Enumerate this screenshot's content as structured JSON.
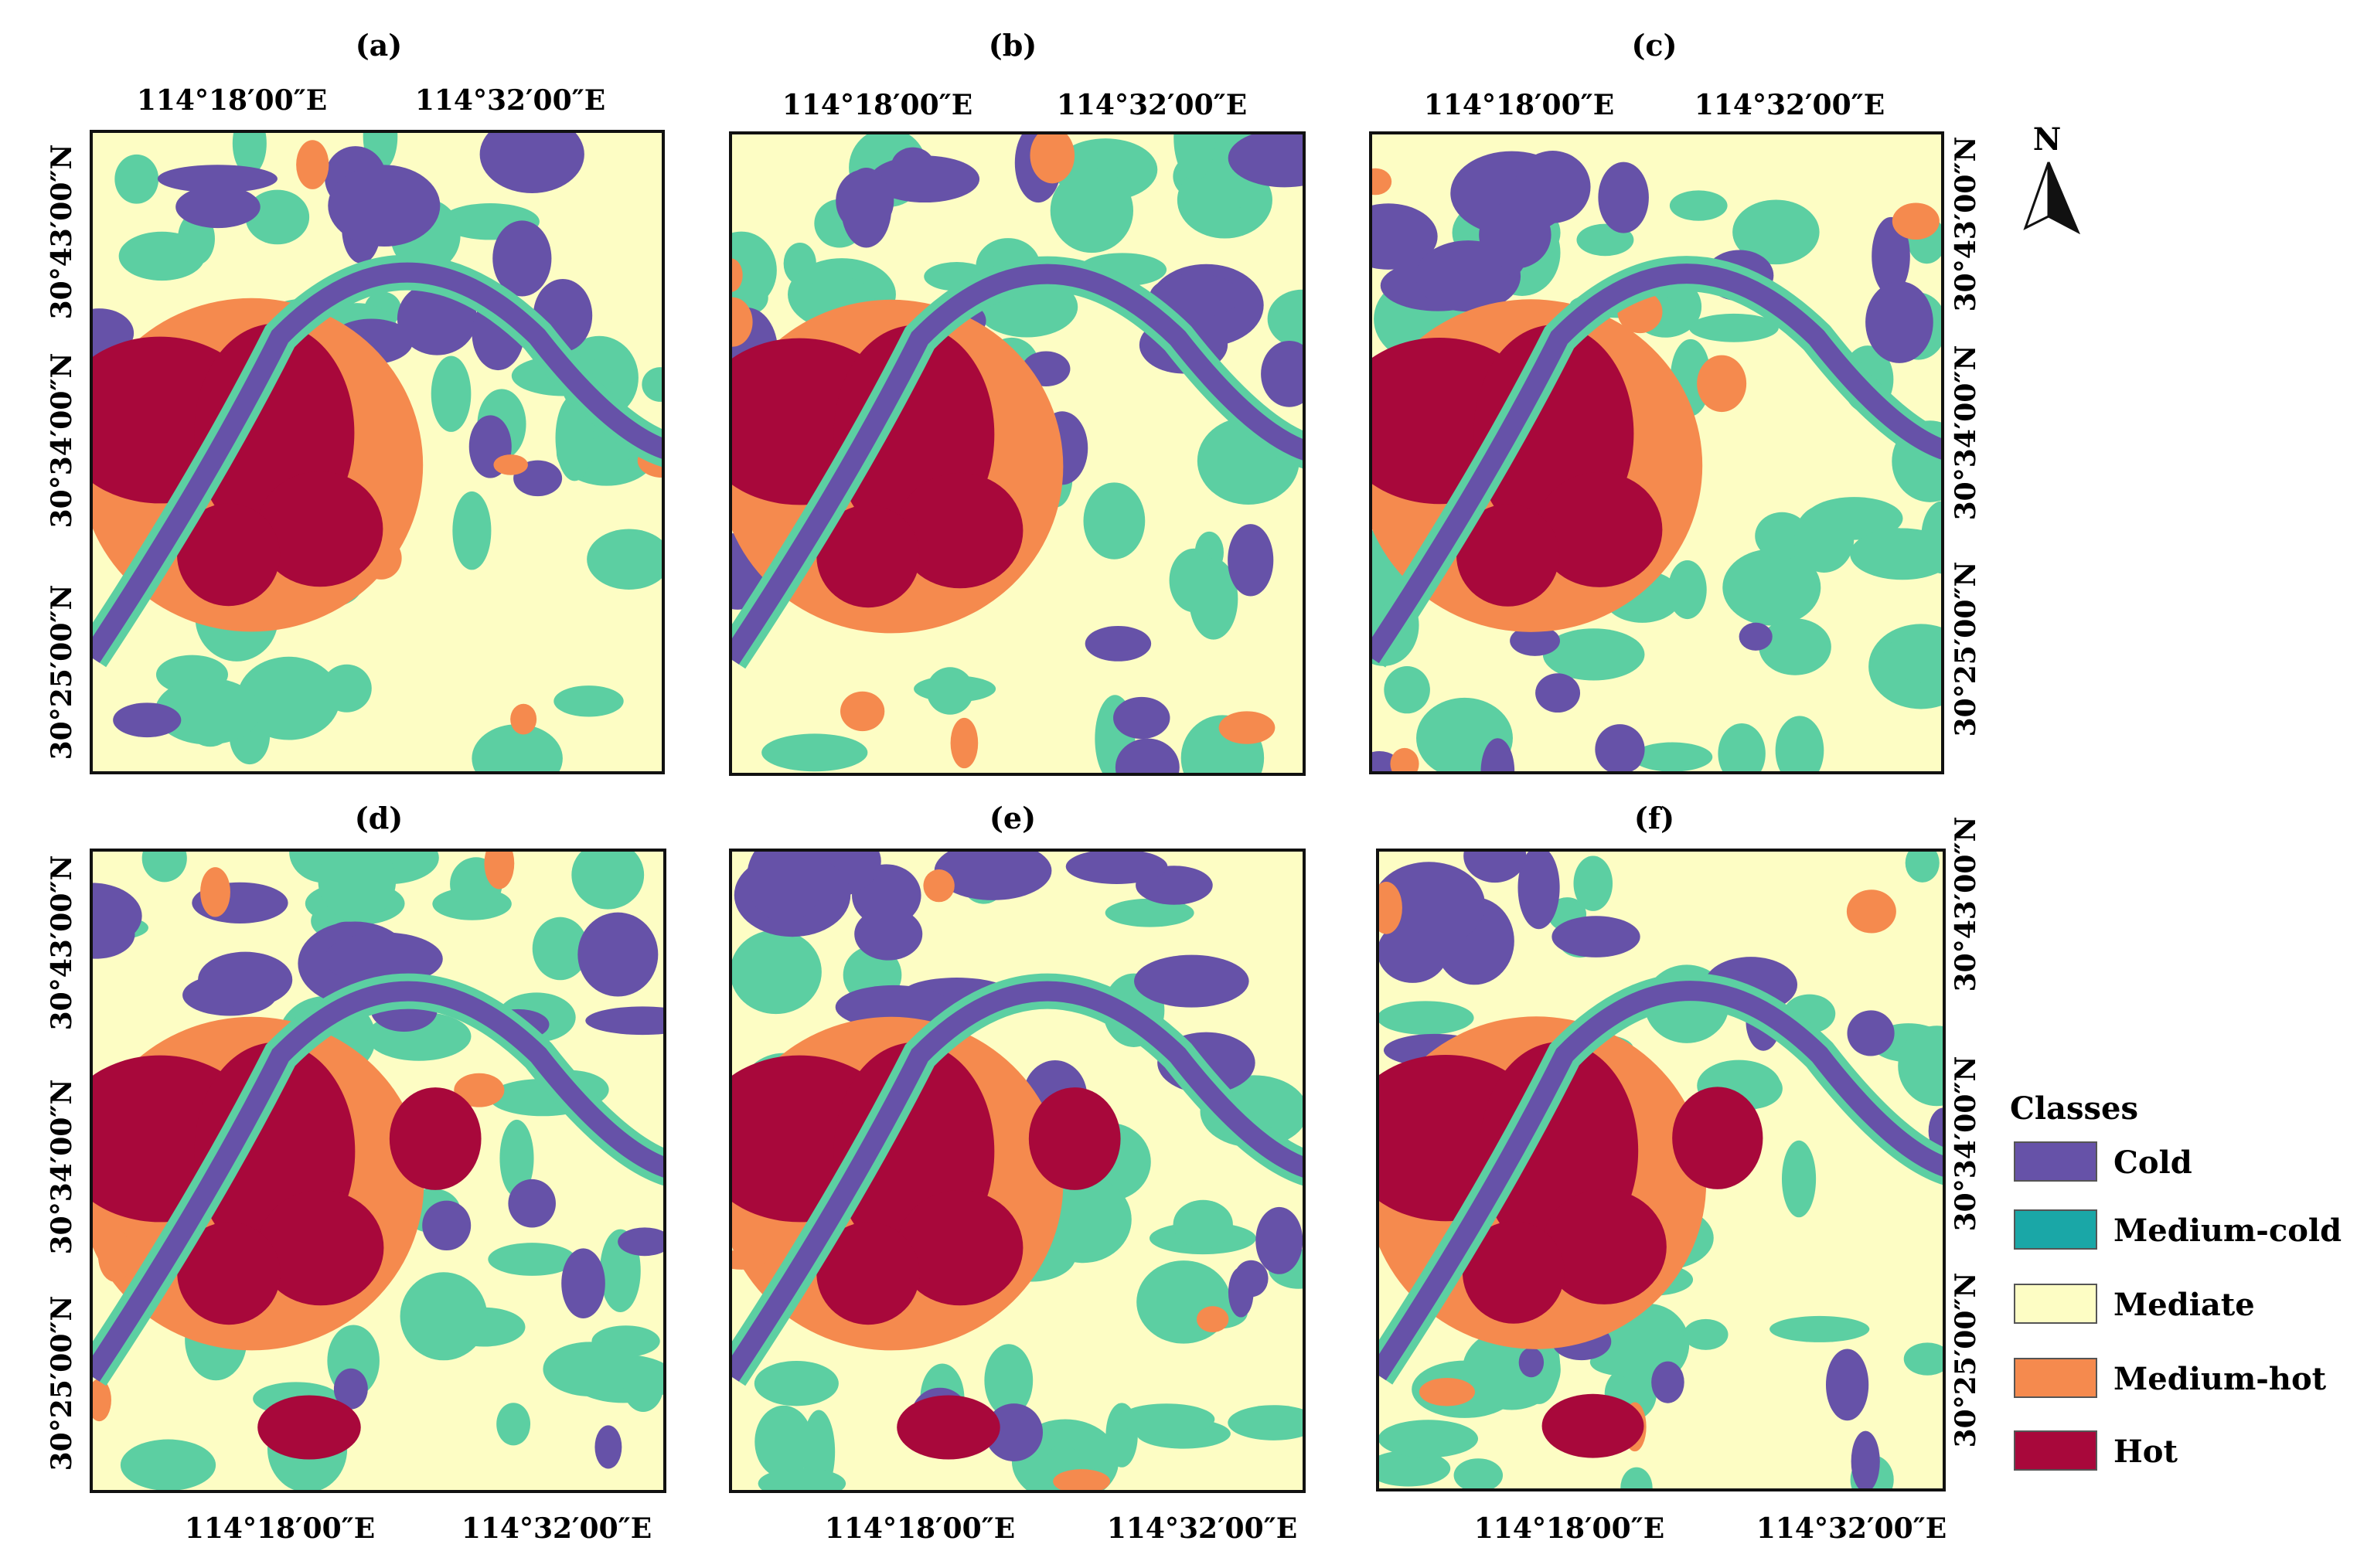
{
  "panels": [
    {
      "label": "(a)",
      "top_lon": [
        "114°18′00″E",
        "114°32′00″E"
      ],
      "bottom_lon": [],
      "left_lat": [
        "30°43′00″N",
        "30°34′00″N",
        "30°25′00″N"
      ],
      "right_lat": []
    },
    {
      "label": "(b)",
      "top_lon": [
        "114°18′00″E",
        "114°32′00″E"
      ],
      "bottom_lon": [],
      "left_lat": [],
      "right_lat": []
    },
    {
      "label": "(c)",
      "top_lon": [
        "114°18′00″E",
        "114°32′00″E"
      ],
      "bottom_lon": [],
      "left_lat": [],
      "right_lat": [
        "30°43′00″N",
        "30°34′00″N",
        "30°25′00″N"
      ]
    },
    {
      "label": "(d)",
      "top_lon": [],
      "bottom_lon": [
        "114°18′00″E",
        "114°32′00″E"
      ],
      "left_lat": [
        "30°43′00″N",
        "30°34′00″N",
        "30°25′00″N"
      ],
      "right_lat": []
    },
    {
      "label": "(e)",
      "top_lon": [],
      "bottom_lon": [
        "114°18′00″E",
        "114°32′00″E"
      ],
      "left_lat": [],
      "right_lat": []
    },
    {
      "label": "(f)",
      "top_lon": [],
      "bottom_lon": [
        "114°18′00″E",
        "114°32′00″E"
      ],
      "left_lat": [],
      "right_lat": [
        "30°43′00″N",
        "30°34′00″N",
        "30°25′00″N"
      ]
    }
  ],
  "north_arrow": {
    "label": "N"
  },
  "legend": {
    "title": "Classes",
    "items": [
      {
        "label": "Cold",
        "color": "#6652a8"
      },
      {
        "label": "Medium-cold",
        "color": "#1aa7a7"
      },
      {
        "label": "Mediate",
        "color": "#fdfdc4"
      },
      {
        "label": "Medium-hot",
        "color": "#f58a4e"
      },
      {
        "label": "Hot",
        "color": "#a8083b"
      }
    ]
  },
  "map_colors": {
    "cold": "#6652a8",
    "medium_cold": "#5ccfa2",
    "mediate": "#fdfdc4",
    "medium_hot": "#f58a4e",
    "hot": "#a8083b"
  }
}
